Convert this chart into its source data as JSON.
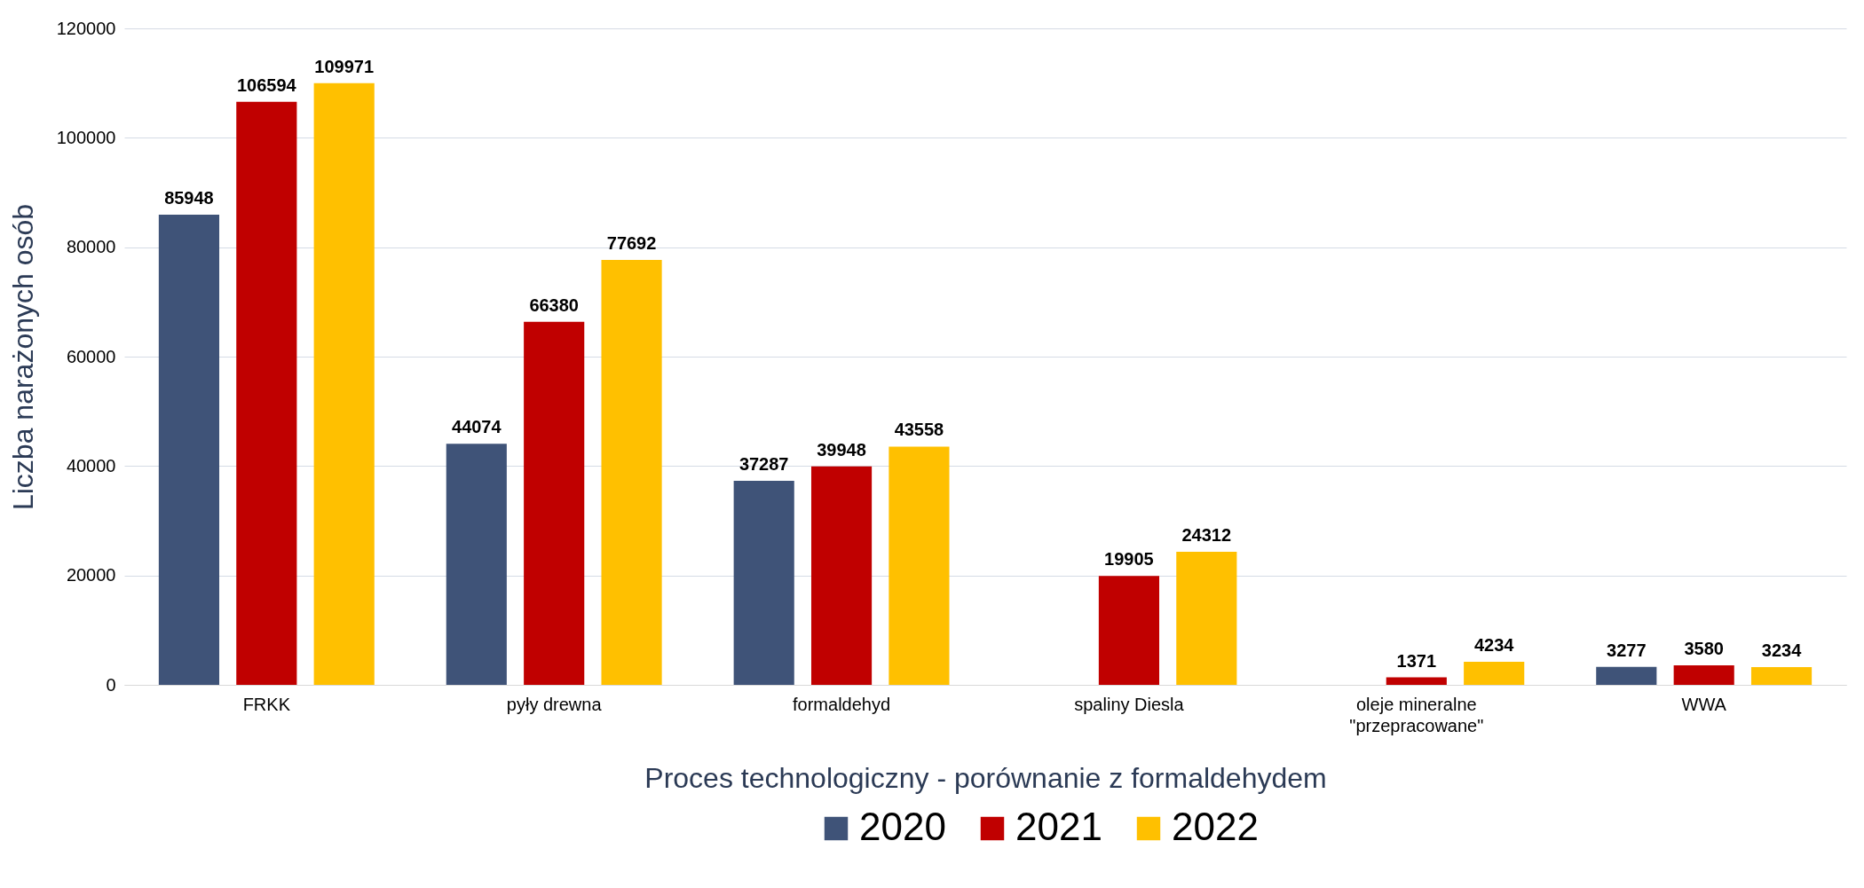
{
  "chart_data": {
    "type": "bar",
    "xlabel": "Proces technologiczny - porównanie z formaldehydem",
    "ylabel": "Liczba narażonych osób",
    "categories": [
      "FRKK",
      "pyły drewna",
      "formaldehyd",
      "spaliny Diesla",
      "oleje mineralne\n\"przepracowane\"",
      "WWA"
    ],
    "series": [
      {
        "name": "2020",
        "color": "#3f5378",
        "values": [
          85948,
          44074,
          37287,
          null,
          null,
          3277
        ]
      },
      {
        "name": "2021",
        "color": "#c00000",
        "values": [
          106594,
          66380,
          39948,
          19905,
          1371,
          3580
        ]
      },
      {
        "name": "2022",
        "color": "#ffc000",
        "values": [
          109971,
          77692,
          43558,
          24312,
          4234,
          3234
        ]
      }
    ],
    "ylim": [
      0,
      120000
    ],
    "yticks": [
      0,
      20000,
      40000,
      60000,
      80000,
      100000,
      120000
    ],
    "grid": "y",
    "legend": "bottom",
    "data_labels": true
  }
}
